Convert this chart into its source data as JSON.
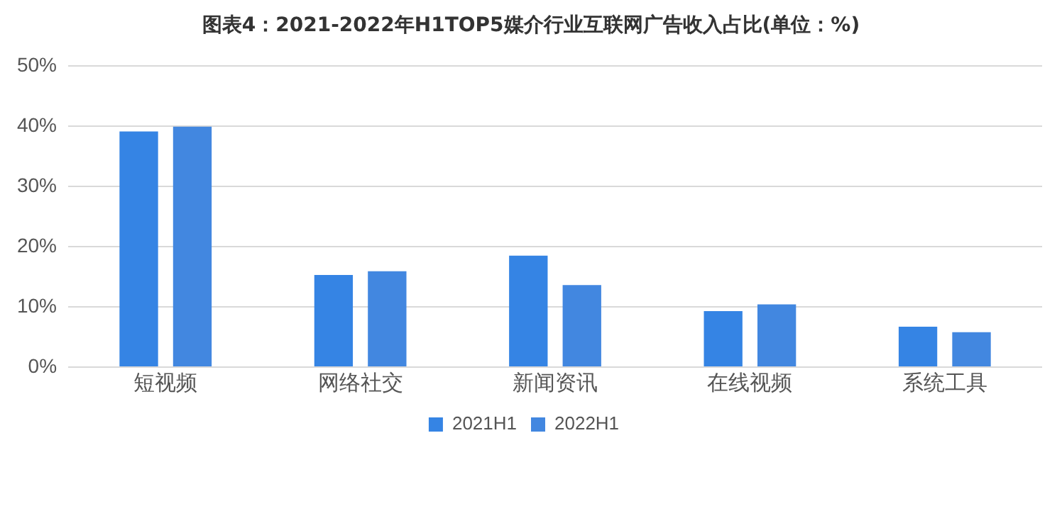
{
  "chart_data": {
    "type": "bar",
    "title": "图表4：2021-2022年H1TOP5媒介行业互联网广告收入占比(单位：%)",
    "categories": [
      "短视频",
      "网络社交",
      "新闻资讯",
      "在线视频",
      "系统工具"
    ],
    "series": [
      {
        "name": "2021H1",
        "color": "#3584e4",
        "values": [
          39.1,
          15.3,
          18.5,
          9.3,
          6.7
        ]
      },
      {
        "name": "2022H1",
        "color": "#4287e0",
        "values": [
          39.9,
          15.9,
          13.6,
          10.4,
          5.8
        ]
      }
    ],
    "ylim": [
      0,
      50
    ],
    "yticks": [
      {
        "value": 0,
        "label": "0%"
      },
      {
        "value": 10,
        "label": "10%"
      },
      {
        "value": 20,
        "label": "20%"
      },
      {
        "value": 30,
        "label": "30%"
      },
      {
        "value": 40,
        "label": "40%"
      },
      {
        "value": 50,
        "label": "50%"
      }
    ],
    "grid": "y",
    "legend": "bottom"
  }
}
